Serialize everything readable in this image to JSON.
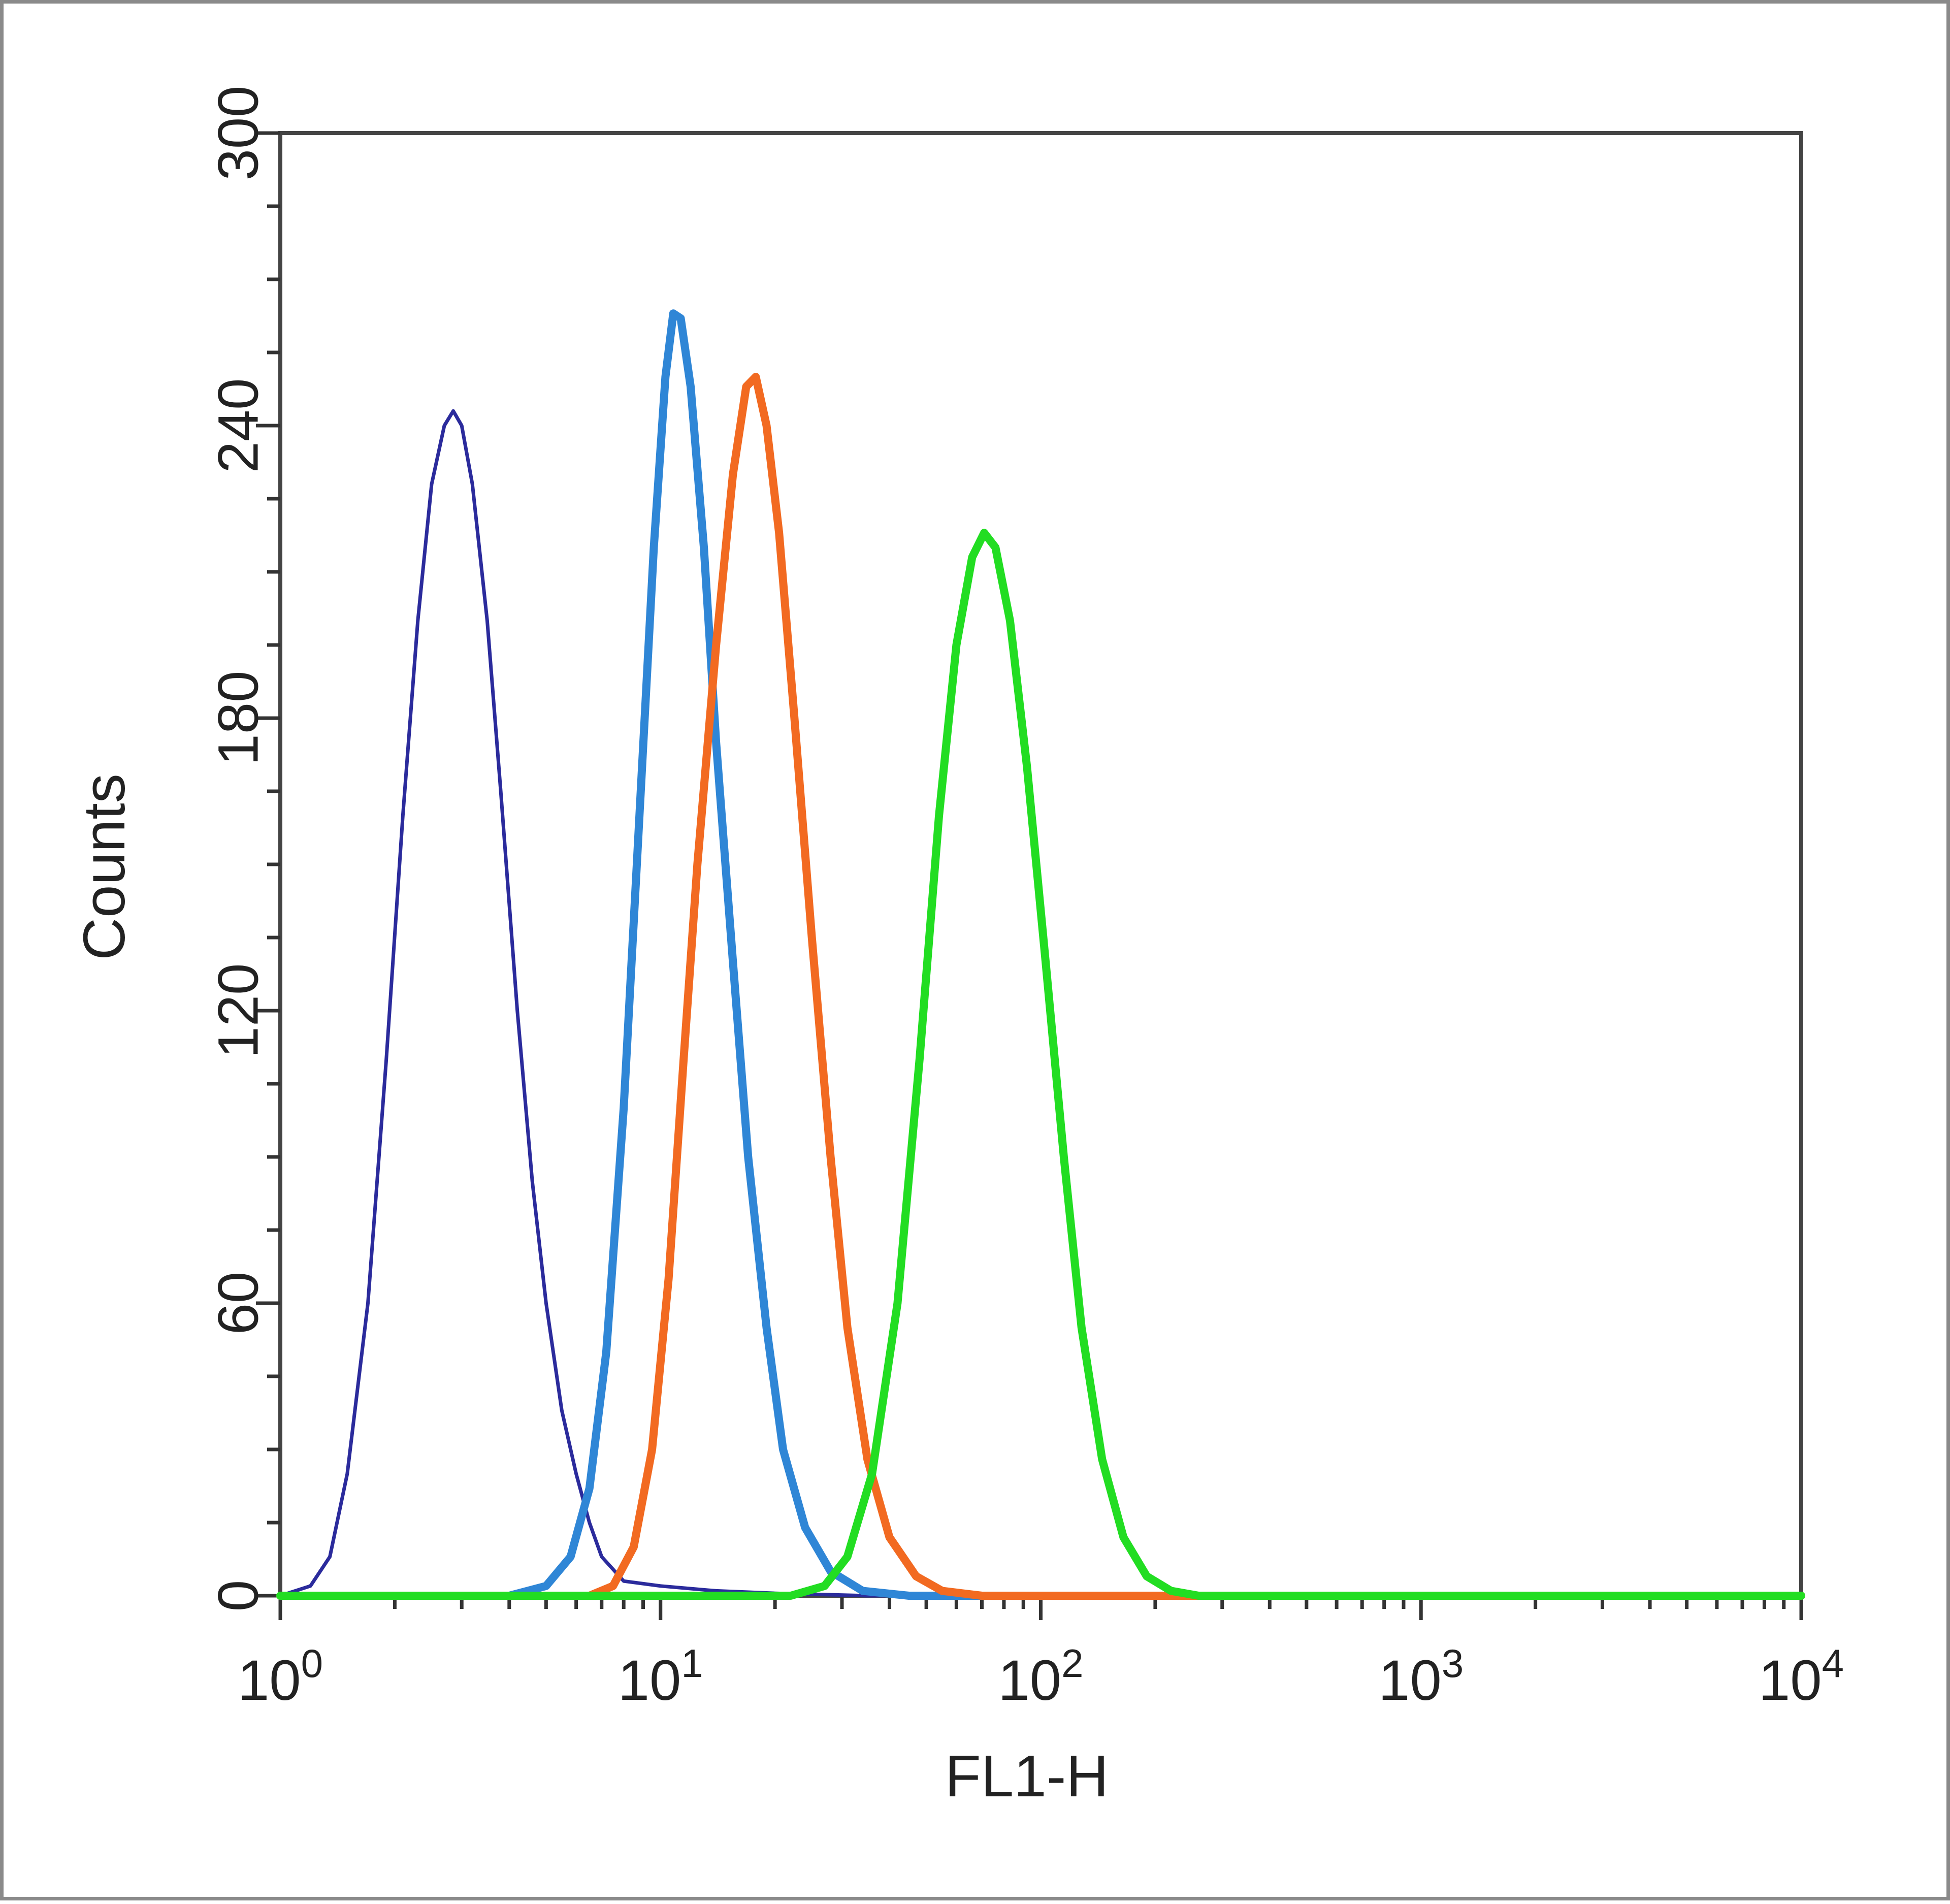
{
  "chart_data": {
    "type": "line",
    "title": "",
    "xlabel": "FL1-H",
    "ylabel": "Counts",
    "x_scale": "log",
    "xlim": [
      1,
      10000
    ],
    "ylim": [
      0,
      300
    ],
    "x_ticks": [
      {
        "value": 1,
        "base": "10",
        "exp": "0"
      },
      {
        "value": 10,
        "base": "10",
        "exp": "1"
      },
      {
        "value": 100,
        "base": "10",
        "exp": "2"
      },
      {
        "value": 1000,
        "base": "10",
        "exp": "3"
      },
      {
        "value": 10000,
        "base": "10",
        "exp": "4"
      }
    ],
    "y_ticks": [
      {
        "value": 0,
        "label": "0"
      },
      {
        "value": 60,
        "label": "60"
      },
      {
        "value": 120,
        "label": "120"
      },
      {
        "value": 180,
        "label": "180"
      },
      {
        "value": 240,
        "label": "240"
      },
      {
        "value": 300,
        "label": "300"
      }
    ],
    "grid": false,
    "legend": "none",
    "series": [
      {
        "color": "#2b2b9c",
        "points": [
          [
            1,
            0
          ],
          [
            1.2,
            2
          ],
          [
            1.35,
            8
          ],
          [
            1.5,
            25
          ],
          [
            1.7,
            60
          ],
          [
            1.9,
            110
          ],
          [
            2.1,
            160
          ],
          [
            2.3,
            200
          ],
          [
            2.5,
            228
          ],
          [
            2.7,
            240
          ],
          [
            2.85,
            243
          ],
          [
            3.0,
            240
          ],
          [
            3.2,
            228
          ],
          [
            3.5,
            200
          ],
          [
            3.8,
            165
          ],
          [
            4.2,
            120
          ],
          [
            4.6,
            85
          ],
          [
            5.0,
            60
          ],
          [
            5.5,
            38
          ],
          [
            6.0,
            25
          ],
          [
            6.5,
            15
          ],
          [
            7.0,
            8
          ],
          [
            8.0,
            3
          ],
          [
            10,
            2
          ],
          [
            14,
            1
          ],
          [
            20,
            0.5
          ],
          [
            35,
            0
          ],
          [
            10000,
            0
          ]
        ]
      },
      {
        "color": "#2f86d6",
        "points": [
          [
            1,
            0
          ],
          [
            4,
            0
          ],
          [
            5,
            2
          ],
          [
            5.8,
            8
          ],
          [
            6.5,
            22
          ],
          [
            7.2,
            50
          ],
          [
            8.0,
            100
          ],
          [
            8.8,
            160
          ],
          [
            9.6,
            215
          ],
          [
            10.3,
            250
          ],
          [
            10.8,
            263
          ],
          [
            11.3,
            262
          ],
          [
            12.0,
            248
          ],
          [
            13.0,
            215
          ],
          [
            14.0,
            175
          ],
          [
            15.5,
            130
          ],
          [
            17.0,
            90
          ],
          [
            19.0,
            55
          ],
          [
            21.0,
            30
          ],
          [
            24.0,
            14
          ],
          [
            28.0,
            5
          ],
          [
            34.0,
            1
          ],
          [
            45.0,
            0
          ],
          [
            10000,
            0
          ]
        ]
      },
      {
        "color": "#f26a21",
        "points": [
          [
            1,
            0
          ],
          [
            6.5,
            0
          ],
          [
            7.5,
            2
          ],
          [
            8.5,
            10
          ],
          [
            9.5,
            30
          ],
          [
            10.5,
            65
          ],
          [
            11.5,
            110
          ],
          [
            12.5,
            150
          ],
          [
            14.0,
            195
          ],
          [
            15.5,
            230
          ],
          [
            16.8,
            248
          ],
          [
            17.8,
            250
          ],
          [
            19.0,
            240
          ],
          [
            20.5,
            218
          ],
          [
            22.5,
            180
          ],
          [
            25.0,
            135
          ],
          [
            28.0,
            90
          ],
          [
            31.0,
            55
          ],
          [
            35.0,
            28
          ],
          [
            40.0,
            12
          ],
          [
            47.0,
            4
          ],
          [
            55.0,
            1
          ],
          [
            70.0,
            0
          ],
          [
            10000,
            0
          ]
        ]
      },
      {
        "color": "#22dd22",
        "points": [
          [
            1,
            0
          ],
          [
            22,
            0
          ],
          [
            27,
            2
          ],
          [
            31,
            8
          ],
          [
            36,
            25
          ],
          [
            42,
            60
          ],
          [
            48,
            110
          ],
          [
            54,
            160
          ],
          [
            60,
            195
          ],
          [
            66,
            213
          ],
          [
            71,
            218
          ],
          [
            76,
            215
          ],
          [
            83,
            200
          ],
          [
            92,
            170
          ],
          [
            103,
            130
          ],
          [
            115,
            90
          ],
          [
            128,
            55
          ],
          [
            145,
            28
          ],
          [
            165,
            12
          ],
          [
            190,
            4
          ],
          [
            220,
            1
          ],
          [
            260,
            0
          ],
          [
            10000,
            0
          ]
        ]
      }
    ]
  }
}
